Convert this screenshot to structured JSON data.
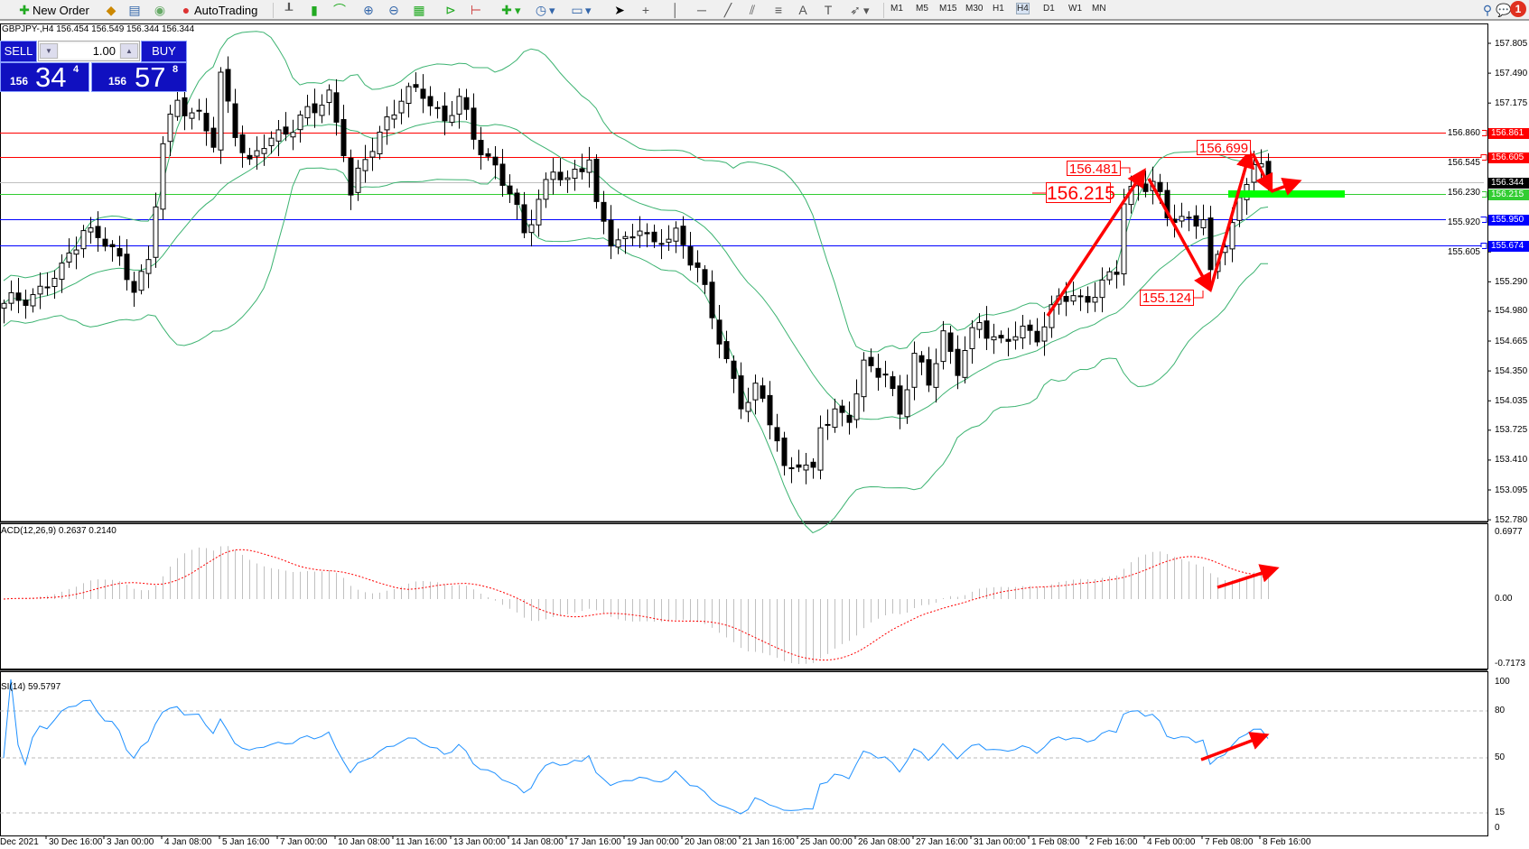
{
  "toolbar": {
    "new_order": "New Order",
    "autotrading": "AutoTrading",
    "icons": [
      "new-order-icon",
      "metaeditor-icon",
      "market-watch-icon",
      "signals-icon",
      "autotrading-icon",
      "bar-chart-icon",
      "candlestick-icon",
      "line-chart-icon",
      "zoom-in-icon",
      "zoom-out-icon",
      "tile-windows-icon",
      "autoscroll-icon",
      "chart-shift-icon",
      "indicators-icon",
      "periods-icon",
      "templates-icon",
      "cursor-icon",
      "crosshair-icon",
      "vertical-line-icon",
      "horizontal-line-icon",
      "trendline-icon",
      "equidistant-channel-icon",
      "fibonacci-icon",
      "text-icon",
      "text-label-icon",
      "arrows-icon",
      "search-icon",
      "notification-icon"
    ],
    "timeframes": [
      "M1",
      "M5",
      "M15",
      "M30",
      "H1",
      "H4",
      "D1",
      "W1",
      "MN"
    ],
    "active_timeframe": "H4",
    "notification_count": "1"
  },
  "chart_header": "GBPJPY-,H4  156.454 156.549 156.344 156.344",
  "one_click": {
    "sell_label": "SELL",
    "buy_label": "BUY",
    "volume": "1.00",
    "sell_price": {
      "small": "156",
      "big": "34",
      "tail": "4"
    },
    "buy_price": {
      "small": "156",
      "big": "57",
      "tail": "8"
    }
  },
  "price_axis": [
    "157.805",
    "157.490",
    "157.175",
    "156.860",
    "156.545",
    "156.230",
    "155.920",
    "155.605",
    "155.290",
    "154.980",
    "154.665",
    "154.350",
    "154.035",
    "153.725",
    "153.410",
    "153.095",
    "152.780"
  ],
  "levels": [
    {
      "price": "156.861",
      "color": "#ff0000"
    },
    {
      "price": "156.605",
      "color": "#ff0000"
    },
    {
      "price": "156.344",
      "color": "#000000",
      "line": "#c0c0c0"
    },
    {
      "price": "156.215",
      "color": "#32cd32"
    },
    {
      "price": "155.950",
      "color": "#0000ff"
    },
    {
      "price": "155.674",
      "color": "#0000ff"
    }
  ],
  "annotations": [
    "156.215",
    "156.481",
    "156.699",
    "155.124"
  ],
  "time_axis": [
    "Dec 2021",
    "30 Dec 16:00",
    "3 Jan 00:00",
    "4 Jan 08:00",
    "5 Jan 16:00",
    "7 Jan 00:00",
    "10 Jan 08:00",
    "11 Jan 16:00",
    "13 Jan 00:00",
    "14 Jan 08:00",
    "17 Jan 16:00",
    "19 Jan 00:00",
    "20 Jan 08:00",
    "21 Jan 16:00",
    "25 Jan 00:00",
    "26 Jan 08:00",
    "27 Jan 16:00",
    "31 Jan 00:00",
    "1 Feb 08:00",
    "2 Feb 16:00",
    "4 Feb 00:00",
    "7 Feb 08:00",
    "8 Feb 16:00"
  ],
  "macd": {
    "label": "ACD(12,26,9) 0.2637 0.2140",
    "axis": [
      "0.6977",
      "0.00",
      "-0.7173"
    ]
  },
  "rsi": {
    "label": "SI(14) 59.5797",
    "axis": [
      "100",
      "80",
      "50",
      "15",
      "0"
    ]
  },
  "colors": {
    "bands": "#3cb371",
    "annotation": "#ff0000",
    "support_zone": "#00ff00",
    "rsi_line": "#1e90ff",
    "macd_signal": "#ff0000",
    "macd_hist": "#c0c0c0"
  },
  "chart_data": {
    "type": "candlestick",
    "symbol": "GBPJPY",
    "timeframe": "H4",
    "ylim": [
      152.78,
      157.805
    ],
    "indicators": [
      "Bollinger Bands",
      "MACD(12,26,9)",
      "RSI(14)"
    ],
    "close_path": [
      [
        0,
        155.02
      ],
      [
        4,
        155.17
      ],
      [
        8,
        155.38
      ],
      [
        11,
        155.89
      ],
      [
        14,
        155.69
      ],
      [
        18,
        155.28
      ],
      [
        20,
        155.48
      ],
      [
        22,
        156.72
      ],
      [
        24,
        157.23
      ],
      [
        27,
        157.02
      ],
      [
        29,
        156.72
      ],
      [
        30,
        157.44
      ],
      [
        32,
        156.92
      ],
      [
        34,
        156.51
      ],
      [
        36,
        156.72
      ],
      [
        39,
        156.92
      ],
      [
        43,
        157.08
      ],
      [
        45,
        157.28
      ],
      [
        47,
        156.72
      ],
      [
        48,
        156.2
      ],
      [
        51,
        156.72
      ],
      [
        53,
        157.02
      ],
      [
        55,
        157.23
      ],
      [
        58,
        157.28
      ],
      [
        61,
        157.02
      ],
      [
        63,
        157.18
      ],
      [
        65,
        156.82
      ],
      [
        68,
        156.51
      ],
      [
        70,
        156.2
      ],
      [
        72,
        155.79
      ],
      [
        74,
        156.2
      ],
      [
        76,
        156.46
      ],
      [
        78,
        156.3
      ],
      [
        81,
        156.66
      ],
      [
        82,
        156.1
      ],
      [
        84,
        155.69
      ],
      [
        86,
        155.69
      ],
      [
        88,
        155.94
      ],
      [
        90,
        155.64
      ],
      [
        93,
        155.79
      ],
      [
        96,
        155.48
      ],
      [
        98,
        154.87
      ],
      [
        100,
        154.45
      ],
      [
        102,
        154.04
      ],
      [
        104,
        154.15
      ],
      [
        107,
        153.63
      ],
      [
        108,
        153.32
      ],
      [
        110,
        153.43
      ],
      [
        112,
        153.22
      ],
      [
        113,
        153.74
      ],
      [
        115,
        153.94
      ],
      [
        117,
        153.89
      ],
      [
        119,
        154.35
      ],
      [
        122,
        154.35
      ],
      [
        124,
        153.94
      ],
      [
        126,
        154.45
      ],
      [
        128,
        154.25
      ],
      [
        130,
        154.76
      ],
      [
        132,
        154.35
      ],
      [
        135,
        154.87
      ],
      [
        138,
        154.66
      ],
      [
        140,
        154.71
      ],
      [
        143,
        154.76
      ],
      [
        146,
        155.12
      ],
      [
        149,
        155.07
      ],
      [
        151,
        155.23
      ],
      [
        154,
        155.38
      ],
      [
        155,
        156.1
      ],
      [
        157,
        156.36
      ],
      [
        159,
        156.36
      ],
      [
        161,
        155.94
      ],
      [
        163,
        155.94
      ],
      [
        166,
        156.0
      ],
      [
        167,
        155.33
      ],
      [
        169,
        155.69
      ],
      [
        171,
        156.15
      ],
      [
        173,
        156.61
      ],
      [
        175,
        156.344
      ]
    ]
  }
}
